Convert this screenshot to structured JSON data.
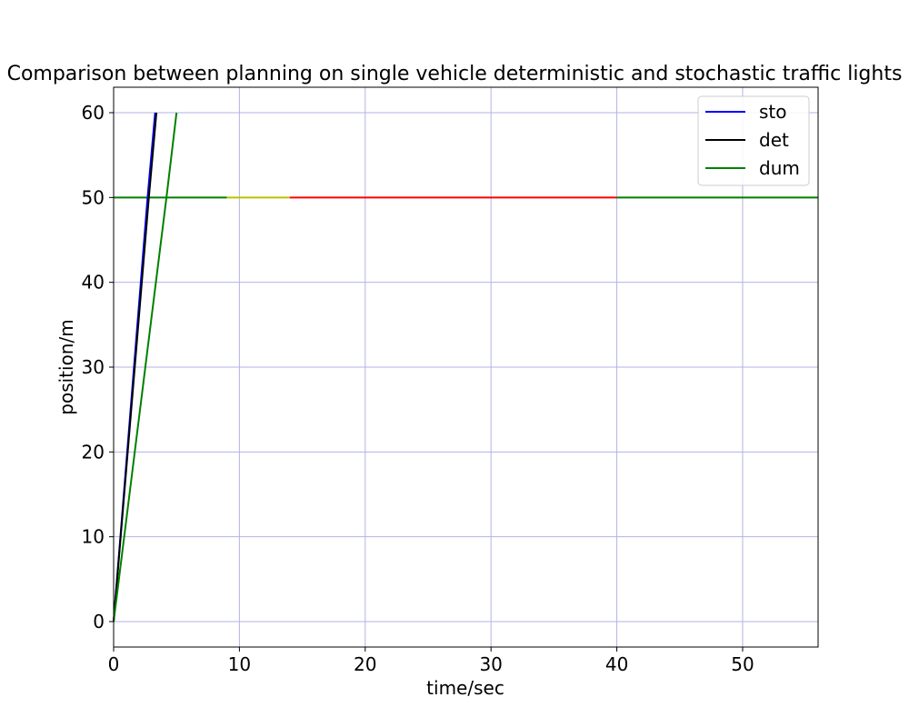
{
  "chart_data": {
    "type": "line",
    "title": "Comparison between planning on single vehicle deterministic and stochastic traffic lights",
    "xlabel": "time/sec",
    "ylabel": "position/m",
    "xlim": [
      0,
      56
    ],
    "ylim": [
      -3,
      63
    ],
    "xticks": [
      0,
      10,
      20,
      30,
      40,
      50
    ],
    "yticks": [
      0,
      10,
      20,
      30,
      40,
      50,
      60
    ],
    "grid": true,
    "grid_color": "#b3b3e6",
    "legend_position": "top-right",
    "series": [
      {
        "name": "sto",
        "color": "#0000ff",
        "points": [
          [
            0,
            0
          ],
          [
            2.7,
            50
          ],
          [
            3.3,
            60
          ]
        ]
      },
      {
        "name": "det",
        "color": "#000000",
        "points": [
          [
            0,
            0
          ],
          [
            2.8,
            50
          ],
          [
            3.4,
            60
          ]
        ]
      },
      {
        "name": "dum",
        "color": "#008000",
        "points": [
          [
            0,
            0
          ],
          [
            4.2,
            50
          ],
          [
            5.0,
            60
          ]
        ]
      }
    ],
    "traffic_light": {
      "position": 50,
      "phases": [
        {
          "state": "green",
          "color": "#008000",
          "start": 0,
          "end": 9
        },
        {
          "state": "yellow",
          "color": "#bfbf00",
          "start": 9,
          "end": 14
        },
        {
          "state": "red",
          "color": "#ff0000",
          "start": 14,
          "end": 40
        },
        {
          "state": "green",
          "color": "#008000",
          "start": 40,
          "end": 56
        }
      ]
    }
  }
}
